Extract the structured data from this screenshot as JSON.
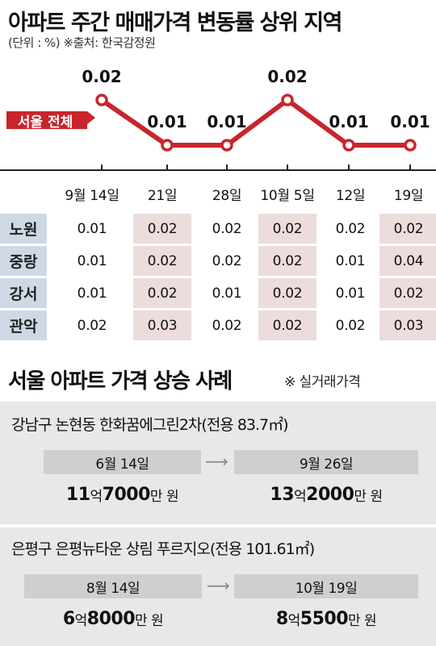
{
  "title": "아파트 주간 매매가격 변동률 상위 지역",
  "subtitle": "(단위 : %)  ※출처: 한국감정원",
  "chart_data": {
    "type": "line",
    "series": [
      {
        "name": "서울 전체",
        "values": [
          0.02,
          0.01,
          0.01,
          0.02,
          0.01,
          0.01
        ]
      }
    ],
    "categories": [
      "9월 14일",
      "21일",
      "28일",
      "10월 5일",
      "12일",
      "19일"
    ],
    "data_labels": [
      "0.02",
      "0.01",
      "0.01",
      "0.02",
      "0.01",
      "0.01"
    ],
    "series_color": "#c8252c",
    "table": {
      "rows": [
        {
          "label": "노원",
          "values": [
            "0.01",
            "0.02",
            "0.02",
            "0.02",
            "0.02",
            "0.02"
          ]
        },
        {
          "label": "중랑",
          "values": [
            "0.01",
            "0.02",
            "0.02",
            "0.02",
            "0.01",
            "0.04"
          ]
        },
        {
          "label": "강서",
          "values": [
            "0.01",
            "0.02",
            "0.01",
            "0.02",
            "0.01",
            "0.02"
          ]
        },
        {
          "label": "관악",
          "values": [
            "0.02",
            "0.03",
            "0.02",
            "0.02",
            "0.02",
            "0.03"
          ]
        }
      ]
    }
  },
  "section2": {
    "title": "서울 아파트 가격 상승 사례",
    "note": "※ 실거래가격",
    "cases": [
      {
        "name": "강남구 논현동 한화꿈에그린2차(전용 83.7㎡)",
        "from_date": "6월 14일",
        "from_price_a": "11",
        "from_unit_a": "억",
        "from_price_b": "7000",
        "from_unit_b": "만 원",
        "to_date": "9월 26일",
        "to_price_a": "13",
        "to_unit_a": "억",
        "to_price_b": "2000",
        "to_unit_b": "만 원"
      },
      {
        "name": "은평구 은평뉴타운 상림 푸르지오(전용 101.61㎡)",
        "from_date": "8월 14일",
        "from_price_a": "6",
        "from_unit_a": "억",
        "from_price_b": "8000",
        "from_unit_b": "만 원",
        "to_date": "10월 19일",
        "to_price_a": "8",
        "to_unit_a": "억",
        "to_price_b": "5500",
        "to_unit_b": "만 원"
      }
    ]
  },
  "colors": {
    "accent": "#c8252c",
    "label_bg": "#cfd9e6",
    "highlight_bg": "#ecdcdc",
    "case_bg": "#e8e8e8"
  }
}
